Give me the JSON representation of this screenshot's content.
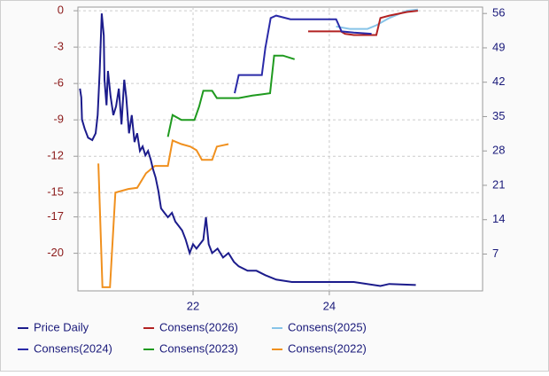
{
  "chart_data": {
    "type": "line",
    "xlim": [
      20.31,
      26.25
    ],
    "xticks": [
      22,
      24
    ],
    "ylim": [
      -23.1,
      0.3
    ],
    "yticks": [
      0,
      -3,
      -6,
      -9,
      -12,
      -15,
      -17,
      -20
    ],
    "y2lim": [
      -0.5,
      57.3
    ],
    "y2ticks": [
      7,
      14,
      21,
      28,
      35,
      42,
      49,
      56
    ],
    "grid": true,
    "series": [
      {
        "name": "Price Daily",
        "color": "#1c1c8c",
        "axis": "y2",
        "x": [
          20.34,
          20.36,
          20.37,
          20.41,
          20.46,
          20.52,
          20.57,
          20.6,
          20.63,
          20.66,
          20.69,
          20.7,
          20.73,
          20.75,
          20.79,
          20.83,
          20.87,
          20.91,
          20.95,
          20.99,
          21.02,
          21.06,
          21.1,
          21.14,
          21.18,
          21.22,
          21.26,
          21.3,
          21.34,
          21.38,
          21.41,
          21.45,
          21.49,
          21.53,
          21.58,
          21.63,
          21.69,
          21.74,
          21.79,
          21.84,
          21.89,
          21.95,
          22.0,
          22.05,
          22.1,
          22.15,
          22.19,
          22.23,
          22.28,
          22.36,
          22.44,
          22.52,
          22.6,
          22.67,
          22.8,
          22.93,
          23.06,
          23.22,
          23.45,
          23.84,
          24.36,
          24.75,
          24.88,
          25.27
        ],
        "values": [
          40.7,
          38.9,
          34.4,
          32.5,
          30.7,
          30.2,
          31.6,
          35.3,
          44.3,
          56.0,
          51.5,
          42.5,
          37.3,
          44.3,
          39.1,
          35.3,
          37.1,
          40.7,
          33.4,
          42.5,
          38.9,
          31.6,
          35.3,
          29.8,
          31.6,
          28.0,
          28.9,
          27.1,
          28.0,
          26.2,
          24.4,
          22.6,
          19.9,
          16.3,
          15.4,
          14.5,
          15.4,
          13.6,
          12.7,
          11.8,
          10.0,
          7.2,
          9.0,
          8.1,
          9.0,
          9.9,
          14.5,
          9.0,
          7.2,
          8.1,
          6.3,
          7.2,
          5.4,
          4.5,
          3.6,
          3.6,
          2.7,
          1.8,
          1.3,
          1.3,
          1.3,
          0.5,
          0.9,
          0.7
        ]
      },
      {
        "name": "Consens(2026)",
        "color": "#b22222",
        "x": [
          23.69,
          24.17,
          24.23,
          24.36,
          24.69,
          24.75,
          24.88,
          25.14,
          25.3
        ],
        "values": [
          -1.7,
          -1.7,
          -1.9,
          -2.0,
          -2.0,
          -0.6,
          -0.4,
          -0.1,
          0.0
        ]
      },
      {
        "name": "Consens(2025)",
        "color": "#87c4e8",
        "x": [
          24.1,
          24.3,
          24.56,
          24.69,
          24.88,
          25.14,
          25.3
        ],
        "values": [
          -1.3,
          -1.5,
          -1.5,
          -1.2,
          -0.6,
          0.0,
          0.1
        ]
      },
      {
        "name": "Consens(2024)",
        "color": "#2a2aa8",
        "x": [
          22.61,
          22.67,
          23.01,
          23.06,
          23.14,
          23.22,
          23.43,
          24.1,
          24.18,
          24.36,
          24.62
        ],
        "values": [
          -6.8,
          -5.3,
          -5.3,
          -3.1,
          -0.6,
          -0.4,
          -0.7,
          -0.7,
          -1.7,
          -1.8,
          -1.9
        ]
      },
      {
        "name": "Consens(2023)",
        "color": "#1f9a1f",
        "x": [
          21.63,
          21.7,
          21.83,
          22.02,
          22.09,
          22.15,
          22.28,
          22.35,
          22.67,
          22.87,
          23.0,
          23.13,
          23.19,
          23.32,
          23.49
        ],
        "values": [
          -10.4,
          -8.6,
          -9.0,
          -9.0,
          -7.9,
          -6.6,
          -6.6,
          -7.2,
          -7.2,
          -7.0,
          -6.9,
          -6.8,
          -3.7,
          -3.7,
          -4.0
        ]
      },
      {
        "name": "Consens(2022)",
        "color": "#f0901e",
        "x": [
          20.61,
          20.67,
          20.78,
          20.86,
          21.05,
          21.18,
          21.31,
          21.44,
          21.63,
          21.7,
          21.83,
          21.96,
          22.05,
          22.13,
          22.28,
          22.35,
          22.52
        ],
        "values": [
          -12.6,
          -22.8,
          -22.8,
          -15.0,
          -14.7,
          -14.6,
          -13.4,
          -12.8,
          -12.8,
          -10.7,
          -11.0,
          -11.2,
          -11.5,
          -12.3,
          -12.3,
          -11.2,
          -11.0
        ]
      }
    ]
  }
}
